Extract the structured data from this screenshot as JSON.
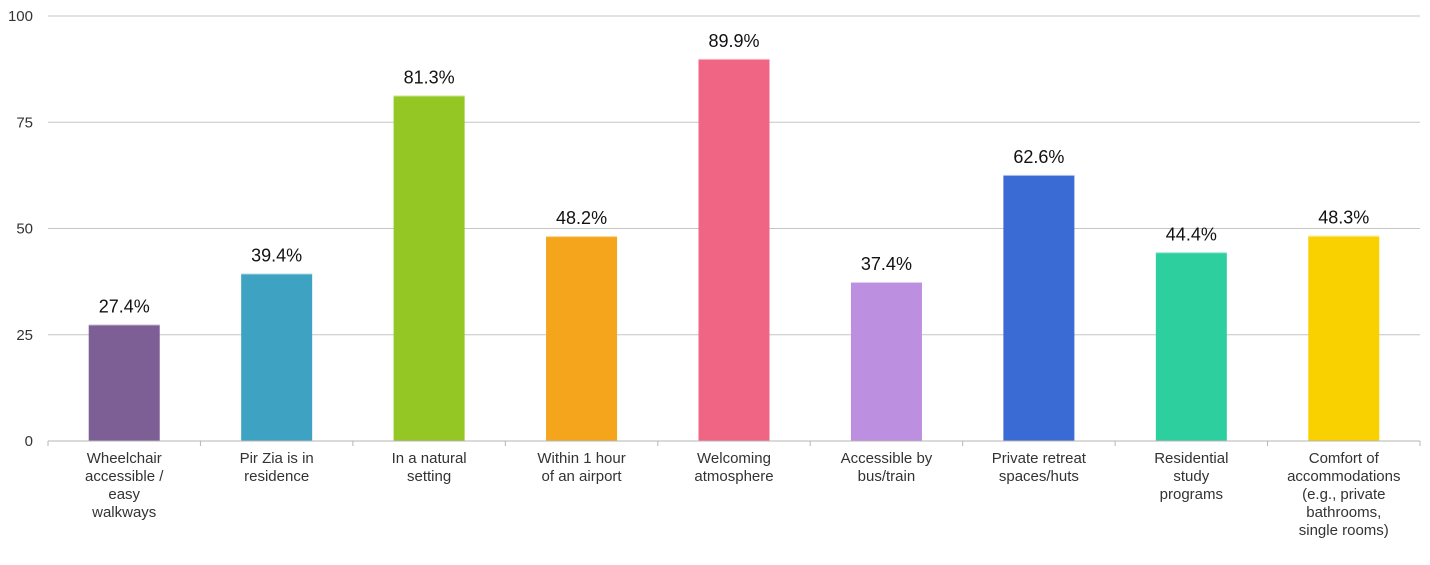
{
  "chart_data": {
    "type": "bar",
    "categories": [
      [
        "Wheelchair",
        "accessible /",
        "easy",
        "walkways"
      ],
      [
        "Pir Zia is in",
        "residence"
      ],
      [
        "In a natural",
        "setting"
      ],
      [
        "Within 1 hour",
        "of an airport"
      ],
      [
        "Welcoming",
        "atmosphere"
      ],
      [
        "Accessible by",
        "bus/train"
      ],
      [
        "Private retreat",
        "spaces/huts"
      ],
      [
        "Residential",
        "study",
        "programs"
      ],
      [
        "Comfort of",
        "accommodations",
        "(e.g., private",
        "bathrooms,",
        "single rooms)"
      ]
    ],
    "values": [
      27.4,
      39.4,
      81.3,
      48.2,
      89.9,
      37.4,
      62.6,
      44.4,
      48.3
    ],
    "data_labels": [
      "27.4%",
      "39.4%",
      "81.3%",
      "48.2%",
      "89.9%",
      "37.4%",
      "62.6%",
      "44.4%",
      "48.3%"
    ],
    "colors": [
      "#7d5f96",
      "#3ea3c2",
      "#94c723",
      "#f4a51c",
      "#f06484",
      "#bd8fe0",
      "#3a6bd4",
      "#2ecf9f",
      "#f9d000"
    ],
    "yticks": [
      "0",
      "25",
      "50",
      "75",
      "100"
    ],
    "ylim": [
      0,
      100
    ],
    "grid": true,
    "gridline_color": "#c6c6c6",
    "title": "",
    "xlabel": "",
    "ylabel": ""
  }
}
